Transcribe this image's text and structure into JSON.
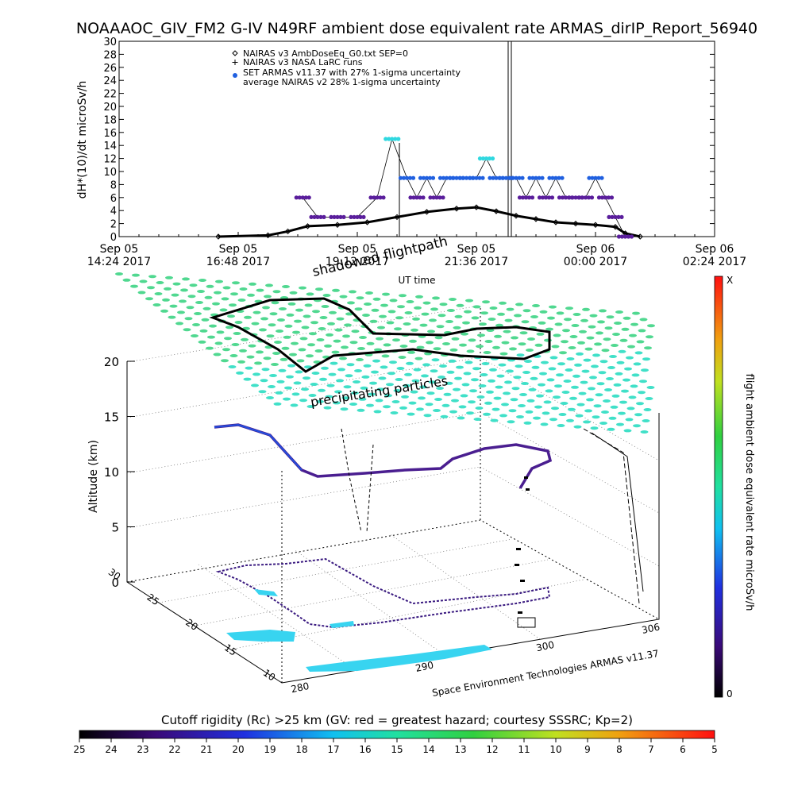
{
  "title": "NOAAAOC_GIV_FM2 G-IV   N49RF  ambient dose equivalent rate ARMAS_dirIP_Report_56940",
  "colors": {
    "black": "#000000",
    "purple": "#5a1e9c",
    "blue": "#2060e0",
    "cyan": "#30d8e0",
    "field_green": "#50d890",
    "field_teal": "#40e0c8"
  },
  "chart_data": [
    {
      "type": "line",
      "ylabel": "dH*(10)/dt microSv/h",
      "xlabel": "UT time",
      "ylim": [
        0,
        30
      ],
      "yticks": [
        0,
        2,
        4,
        6,
        8,
        10,
        12,
        14,
        16,
        18,
        20,
        22,
        24,
        26,
        28,
        30
      ],
      "xlim": [
        "Sep 05 14:24 2017",
        "Sep 06 02:24 2017"
      ],
      "xticks": [
        {
          "hours": 0,
          "line1": "Sep 05",
          "line2": "14:24 2017"
        },
        {
          "hours": 2.4,
          "line1": "Sep 05",
          "line2": "16:48 2017"
        },
        {
          "hours": 4.8,
          "line1": "Sep 05",
          "line2": "19:12 2017"
        },
        {
          "hours": 7.2,
          "line1": "Sep 05",
          "line2": "21:36 2017"
        },
        {
          "hours": 9.6,
          "line1": "Sep 06",
          "line2": "00:00 2017"
        },
        {
          "hours": 12.0,
          "line1": "Sep 06",
          "line2": "02:24 2017"
        }
      ],
      "legend": [
        {
          "symbol": "diamond",
          "text": "NAIRAS v3 AmbDoseEq_G0.txt SEP=0"
        },
        {
          "symbol": "plus",
          "text": "NAIRAS v3 NASA LaRC runs"
        },
        {
          "symbol": "dot",
          "text": "SET ARMAS v11.37 with 27% 1-sigma uncertainty"
        },
        {
          "symbol": "none",
          "text": "average NAIRAS v2 28% 1-sigma uncertainty"
        }
      ],
      "legend_placement": "top-left",
      "series": [
        {
          "name": "NAIRAS v3 AmbDoseEq_G0.txt SEP=0",
          "x": [
            2.0,
            3.0,
            3.4,
            3.8,
            4.4,
            5.0,
            5.6,
            6.2,
            6.8,
            7.2,
            7.6,
            8.0,
            8.4,
            8.8,
            9.2,
            9.6,
            10.0,
            10.2,
            10.5
          ],
          "y": [
            0.0,
            0.2,
            0.8,
            1.6,
            1.8,
            2.2,
            3.0,
            3.8,
            4.3,
            4.5,
            3.9,
            3.2,
            2.7,
            2.2,
            2.0,
            1.8,
            1.5,
            0.5,
            0.0
          ]
        },
        {
          "name": "SET ARMAS v11.37 with 27% 1-sigma uncertainty",
          "x": [
            3.7,
            4.0,
            4.4,
            4.8,
            5.2,
            5.5,
            5.8,
            6.0,
            6.2,
            6.4,
            6.6,
            6.8,
            7.0,
            7.2,
            7.4,
            7.6,
            7.8,
            8.0,
            8.2,
            8.4,
            8.6,
            8.8,
            9.0,
            9.2,
            9.4,
            9.6,
            9.8,
            10.0,
            10.2
          ],
          "y": [
            6,
            3,
            3,
            3,
            6,
            15,
            9,
            6,
            9,
            6,
            9,
            9,
            9,
            9,
            12,
            9,
            9,
            9,
            6,
            9,
            6,
            9,
            6,
            6,
            6,
            9,
            6,
            3,
            0
          ]
        }
      ]
    },
    {
      "type": "scatter",
      "zlabel": "Altitude (km)",
      "zticks": [
        0,
        5,
        10,
        15,
        20
      ],
      "lat_ticks": [
        10,
        15,
        20,
        25,
        30
      ],
      "lon_ticks": [
        280,
        290,
        300,
        306
      ],
      "annotations": [
        "shadowed flightpath",
        "precipitating particles"
      ],
      "credit": "Space Environment Technologies ARMAS v11.37",
      "colorbar": {
        "label": "flight ambient dose equivalent rate microSv/h",
        "top": "X",
        "bottom": "0"
      }
    },
    {
      "type": "heatmap",
      "title": "Cutoff rigidity (Rc) >25 km (GV: red = greatest hazard; courtesy SSSRC; Kp=2)",
      "ticks": [
        "25",
        "24",
        "23",
        "22",
        "21",
        "20",
        "19",
        "18",
        "17",
        "16",
        "15",
        "14",
        "13",
        "12",
        "11",
        "10",
        "9",
        "8",
        "7",
        "6",
        "5"
      ]
    }
  ]
}
